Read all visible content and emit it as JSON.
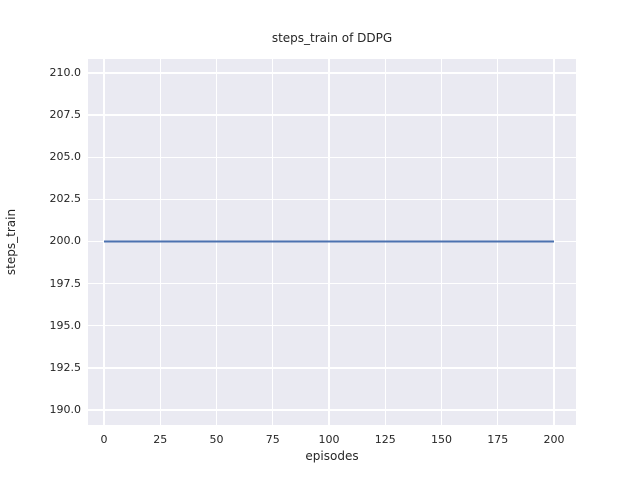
{
  "chart_data": {
    "type": "line",
    "title": "steps_train of DDPG",
    "xlabel": "episodes",
    "ylabel": "steps_train",
    "x_ticks": {
      "values": [
        0,
        25,
        50,
        75,
        100,
        125,
        150,
        175,
        200
      ],
      "labels": [
        "0",
        "25",
        "50",
        "75",
        "100",
        "125",
        "150",
        "175",
        "200"
      ]
    },
    "y_ticks": {
      "values": [
        190.0,
        192.5,
        195.0,
        197.5,
        200.0,
        202.5,
        205.0,
        207.5,
        210.0
      ],
      "labels": [
        "190.0",
        "192.5",
        "195.0",
        "197.5",
        "200.0",
        "202.5",
        "205.0",
        "207.5",
        "210.0"
      ]
    },
    "xlim": [
      -7.11,
      209.78
    ],
    "ylim": [
      189.11,
      210.83
    ],
    "grid": true,
    "legend_position": "none",
    "series": [
      {
        "name": "steps_train",
        "color": "#4C72B0",
        "linewidth": 2,
        "x": [
          0,
          200
        ],
        "y": [
          200,
          200
        ]
      }
    ],
    "colors": {
      "figure_background": "#FFFFFF",
      "plot_background": "#EAEAF2",
      "gridline": "#FFFFFF",
      "text": "#262626"
    }
  }
}
